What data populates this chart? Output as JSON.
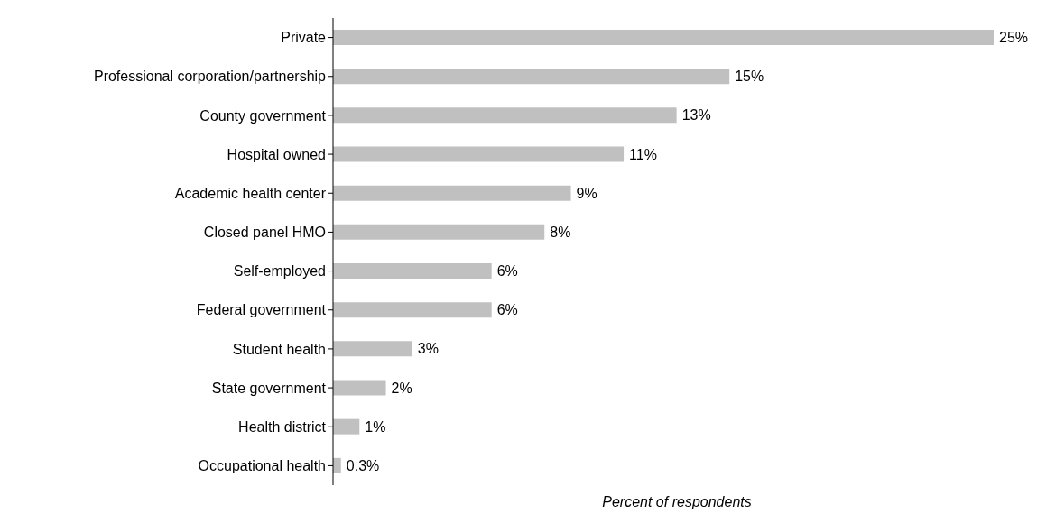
{
  "chart_data": {
    "type": "bar",
    "orientation": "horizontal",
    "xlabel": "Percent of respondents",
    "categories": [
      "Private",
      "Professional corporation/partnership",
      "County government",
      "Hospital owned",
      "Academic health center",
      "Closed panel HMO",
      "Self-employed",
      "Federal government",
      "Student health",
      "State government",
      "Health district",
      "Occupational health"
    ],
    "values": [
      25,
      15,
      13,
      11,
      9,
      8,
      6,
      6,
      3,
      2,
      1,
      0.3
    ],
    "value_labels": [
      "25%",
      "15%",
      "13%",
      "11%",
      "9%",
      "8%",
      "6%",
      "6%",
      "3%",
      "2%",
      "1%",
      "0.3%"
    ],
    "color": "#c0c0c0",
    "grid": false,
    "legend": false,
    "tick_labels": "y"
  }
}
